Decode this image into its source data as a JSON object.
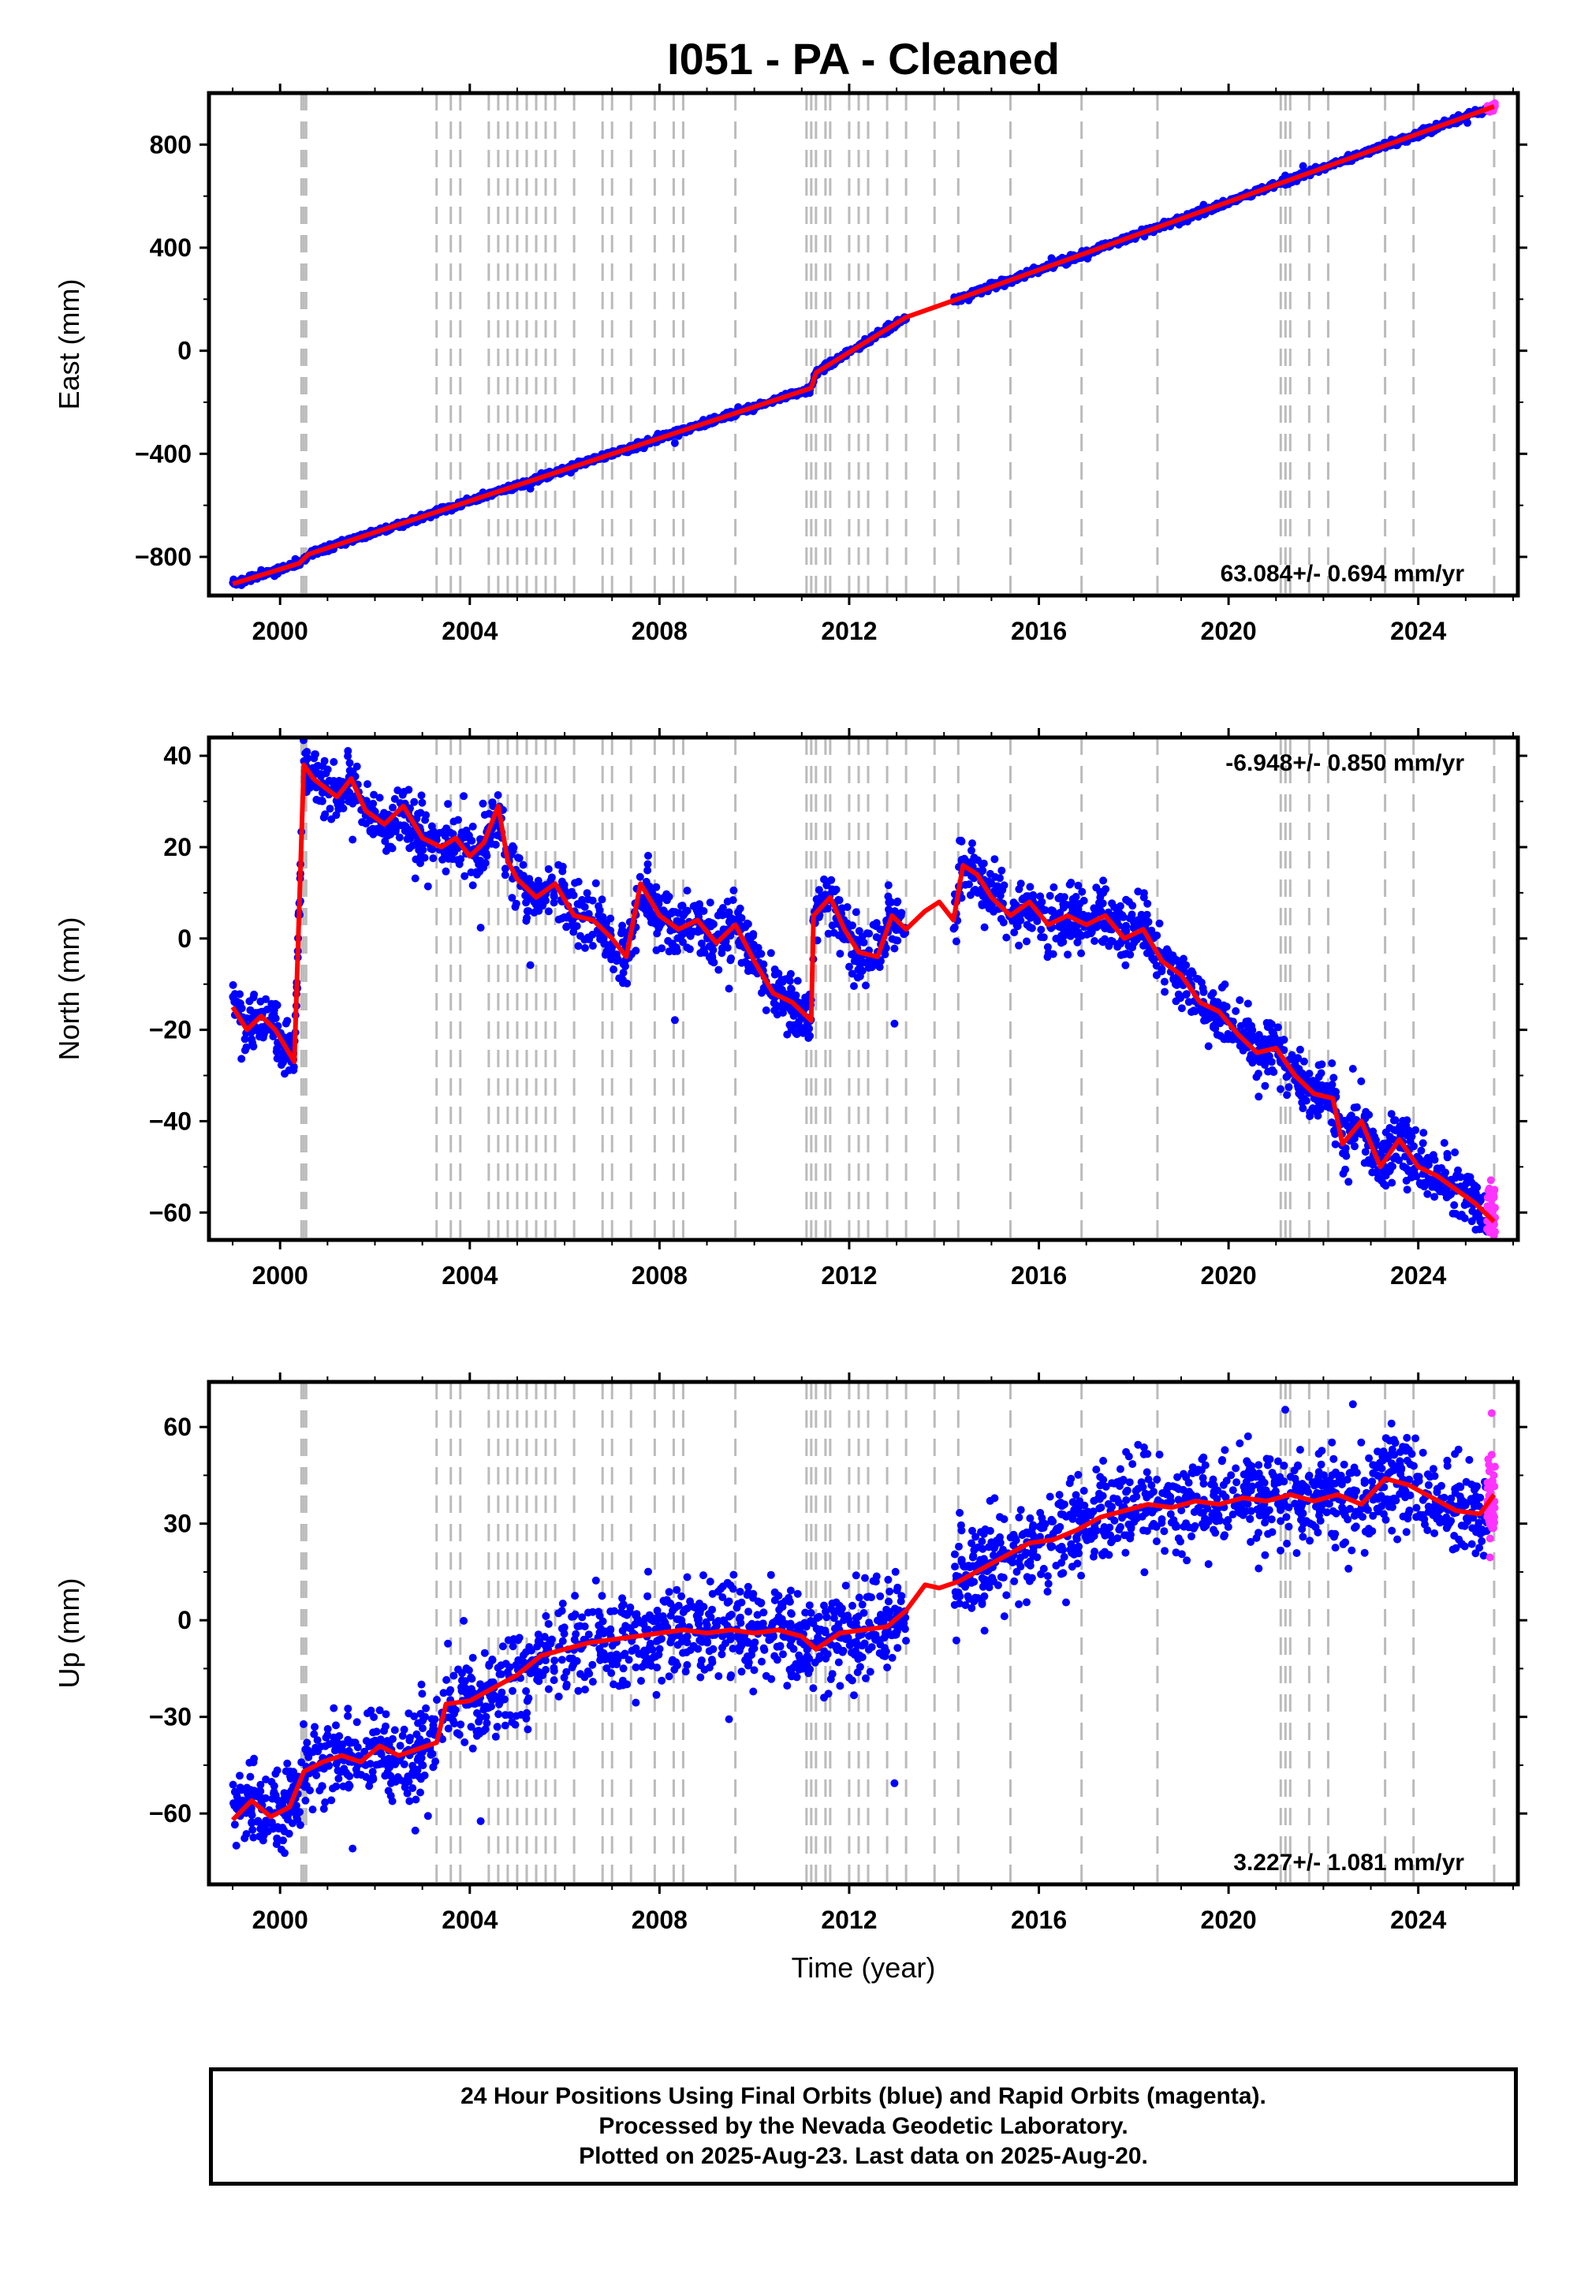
{
  "chart_title": "I051  - PA - Cleaned",
  "footer": {
    "lines": [
      "24 Hour Positions Using Final Orbits (blue) and Rapid Orbits (magenta).",
      "Processed by the Nevada Geodetic Laboratory.",
      "Plotted on 2025-Aug-23. Last data on 2025-Aug-20."
    ]
  },
  "colors": {
    "final_orbits": "#0000ff",
    "rapid_orbits": "#ff33ff",
    "model": "#ff0000",
    "event_lines": "#bbbbbb"
  },
  "chart_data": [
    {
      "type": "scatter",
      "component": "east",
      "ylabel": "East (mm)",
      "xlabel": "",
      "xlim": [
        1998.5,
        2026.1
      ],
      "ylim": [
        -950,
        1000
      ],
      "yticks": [
        -800,
        -400,
        0,
        400,
        800
      ],
      "xticks": [
        2000,
        2004,
        2008,
        2012,
        2016,
        2020,
        2024
      ],
      "rate_label": "63.084+/- 0.694 mm/yr",
      "rate_position": "bottom-right",
      "grid": false,
      "trend": {
        "x": [
          1999.0,
          2000.4,
          2000.6,
          2011.2,
          2011.3,
          2013.2,
          2014.2,
          2025.6
        ],
        "y": [
          -905,
          -825,
          -790,
          -145,
          -85,
          130,
          195,
          948
        ]
      },
      "scatter_noise": 6,
      "scatter_gaps": [
        [
          2013.2,
          2014.2
        ]
      ]
    },
    {
      "type": "scatter",
      "component": "north",
      "ylabel": "North (mm)",
      "xlabel": "",
      "xlim": [
        1998.5,
        2026.1
      ],
      "ylim": [
        -66,
        44
      ],
      "yticks": [
        -60,
        -40,
        -20,
        0,
        20,
        40
      ],
      "xticks": [
        2000,
        2004,
        2008,
        2012,
        2016,
        2020,
        2024
      ],
      "rate_label": "-6.948+/- 0.850 mm/yr",
      "rate_position": "top-right",
      "grid": false,
      "trend": {
        "x": [
          1999.0,
          1999.3,
          1999.6,
          1999.9,
          2000.3,
          2000.5,
          2000.7,
          2001.2,
          2001.5,
          2001.8,
          2002.2,
          2002.6,
          2003.0,
          2003.4,
          2003.7,
          2004.0,
          2004.3,
          2004.6,
          2004.8,
          2005.0,
          2005.4,
          2005.8,
          2006.2,
          2006.6,
          2007.0,
          2007.3,
          2007.6,
          2008.0,
          2008.4,
          2008.8,
          2009.2,
          2009.6,
          2010.0,
          2010.4,
          2010.8,
          2011.2,
          2011.25,
          2011.6,
          2011.9,
          2012.2,
          2012.6,
          2012.9,
          2013.2,
          2013.6,
          2013.9,
          2014.2,
          2014.4,
          2014.7,
          2015.0,
          2015.4,
          2015.8,
          2016.2,
          2016.6,
          2017.0,
          2017.4,
          2017.8,
          2018.2,
          2018.6,
          2019.0,
          2019.4,
          2019.8,
          2020.2,
          2020.6,
          2021.0,
          2021.4,
          2021.8,
          2022.2,
          2022.4,
          2022.8,
          2023.2,
          2023.6,
          2024.0,
          2024.4,
          2024.8,
          2025.2,
          2025.6
        ],
        "y": [
          -15,
          -20,
          -17,
          -20,
          -27,
          38,
          35,
          31,
          35,
          28,
          25,
          29,
          22,
          20,
          22,
          18,
          21,
          29,
          17,
          13,
          9,
          12,
          5,
          4,
          0,
          -4,
          12,
          5,
          2,
          4,
          -1,
          3,
          -5,
          -12,
          -14,
          -18,
          5,
          9,
          2,
          -3,
          -4,
          5,
          2,
          6,
          8,
          4,
          16,
          14,
          9,
          5,
          8,
          3,
          5,
          3,
          5,
          0,
          2,
          -5,
          -8,
          -14,
          -16,
          -21,
          -25,
          -24,
          -30,
          -34,
          -35,
          -45,
          -40,
          -50,
          -44,
          -50,
          -52,
          -55,
          -58,
          -62
        ]
      },
      "scatter_noise": 3.2,
      "scatter_gaps": [
        [
          2013.2,
          2014.2
        ]
      ]
    },
    {
      "type": "scatter",
      "component": "up",
      "ylabel": "Up (mm)",
      "xlabel": "Time (year)",
      "xlim": [
        1998.5,
        2026.1
      ],
      "ylim": [
        -82,
        74
      ],
      "yticks": [
        -60,
        -30,
        0,
        30,
        60
      ],
      "xticks": [
        2000,
        2004,
        2008,
        2012,
        2016,
        2020,
        2024
      ],
      "rate_label": "3.227+/- 1.081 mm/yr",
      "rate_position": "bottom-right",
      "grid": false,
      "trend": {
        "x": [
          1999.0,
          1999.4,
          1999.8,
          2000.2,
          2000.5,
          2000.9,
          2001.3,
          2001.7,
          2002.1,
          2002.5,
          2002.9,
          2003.3,
          2003.5,
          2004.0,
          2004.5,
          2005.0,
          2005.5,
          2006.0,
          2006.5,
          2007.0,
          2007.5,
          2008.0,
          2008.5,
          2009.0,
          2009.5,
          2010.0,
          2010.5,
          2011.0,
          2011.3,
          2011.8,
          2012.3,
          2012.8,
          2013.2,
          2013.6,
          2013.9,
          2014.3,
          2014.8,
          2015.3,
          2015.8,
          2016.3,
          2016.8,
          2017.3,
          2017.8,
          2018.3,
          2018.8,
          2019.3,
          2019.8,
          2020.3,
          2020.8,
          2021.3,
          2021.8,
          2022.3,
          2022.8,
          2023.3,
          2023.8,
          2024.3,
          2024.8,
          2025.3,
          2025.6
        ],
        "y": [
          -62,
          -56,
          -61,
          -58,
          -47,
          -44,
          -42,
          -44,
          -39,
          -42,
          -40,
          -38,
          -26,
          -25,
          -21,
          -17,
          -11,
          -9,
          -7,
          -6,
          -5,
          -4,
          -3,
          -4,
          -3,
          -4,
          -3,
          -5,
          -9,
          -4,
          -3,
          -2,
          3,
          11,
          10,
          12,
          16,
          20,
          24,
          25,
          28,
          32,
          34,
          36,
          35,
          37,
          36,
          38,
          37,
          39,
          37,
          39,
          36,
          44,
          42,
          38,
          34,
          33,
          39
        ]
      },
      "scatter_noise": 7,
      "scatter_gaps": [
        [
          2013.2,
          2014.2
        ]
      ]
    }
  ],
  "event_lines": [
    2000.45,
    2000.5,
    2000.55,
    2003.3,
    2003.6,
    2003.8,
    2004.4,
    2004.6,
    2004.8,
    2005.0,
    2005.2,
    2005.4,
    2005.6,
    2005.8,
    2006.2,
    2006.8,
    2007.0,
    2007.4,
    2007.9,
    2008.3,
    2008.5,
    2009.6,
    2011.1,
    2011.2,
    2011.3,
    2011.5,
    2011.6,
    2012.0,
    2012.2,
    2012.4,
    2012.8,
    2013.2,
    2013.8,
    2014.3,
    2015.4,
    2016.9,
    2018.5,
    2021.1,
    2021.2,
    2021.3,
    2021.7,
    2022.1,
    2023.3,
    2023.9,
    2025.6
  ],
  "rapid_tail": {
    "from": 2025.45,
    "to": 2025.62
  }
}
